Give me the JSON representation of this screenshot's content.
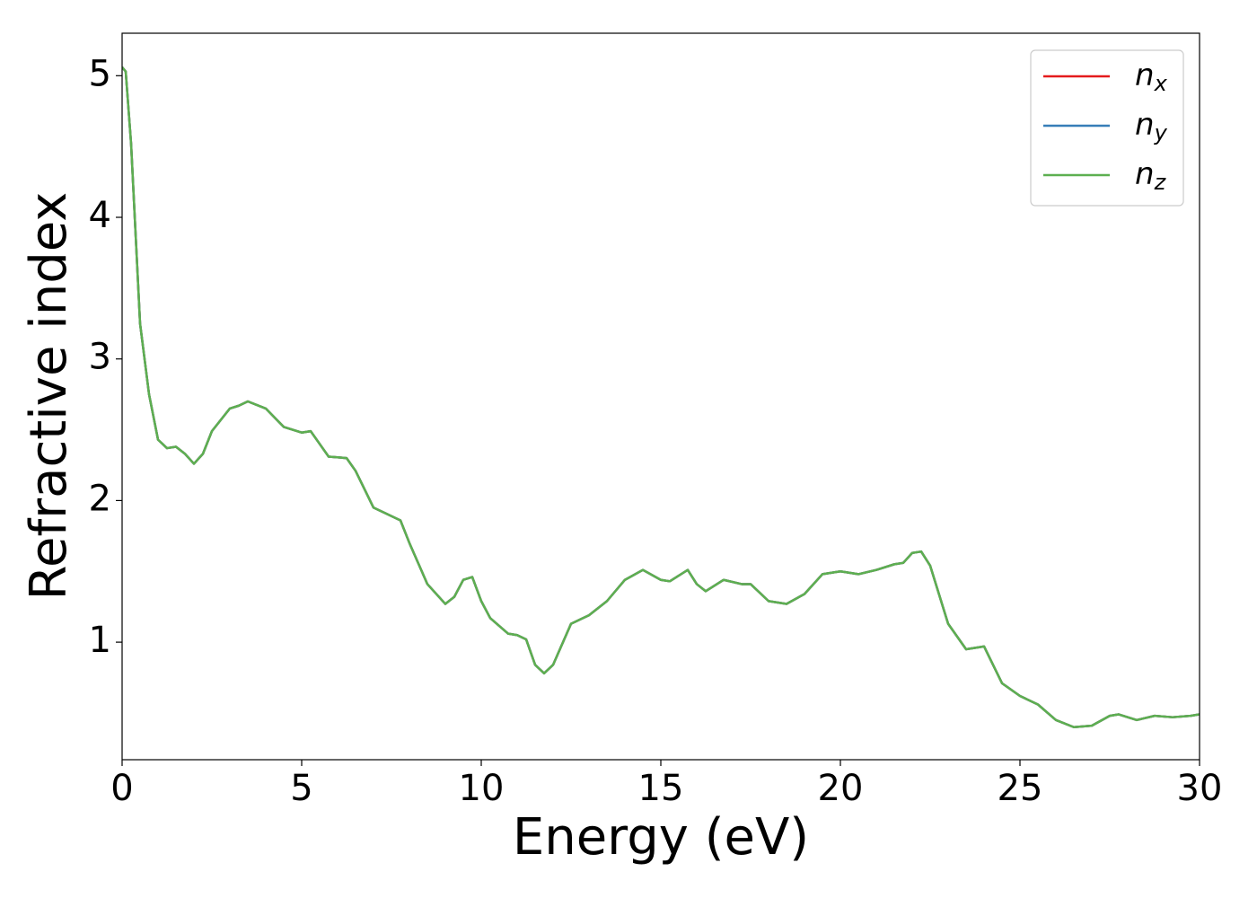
{
  "chart_data": {
    "type": "line",
    "x_label": "Energy (eV)",
    "y_label": "Refractive index",
    "xlim": [
      0,
      30
    ],
    "ylim": [
      0.17,
      5.3
    ],
    "xticks": [
      0,
      5,
      10,
      15,
      20,
      25,
      30
    ],
    "yticks": [
      1,
      2,
      3,
      4,
      5
    ],
    "grid": false,
    "legend": "upper right",
    "x": [
      0,
      0.1,
      0.25,
      0.5,
      0.75,
      1.0,
      1.25,
      1.5,
      1.75,
      2.0,
      2.25,
      2.5,
      3.0,
      3.25,
      3.5,
      4.0,
      4.5,
      5.0,
      5.25,
      5.5,
      5.75,
      6.25,
      6.5,
      7.0,
      7.5,
      7.75,
      8.0,
      8.5,
      9.0,
      9.25,
      9.5,
      9.75,
      10.0,
      10.25,
      10.75,
      11.0,
      11.25,
      11.5,
      11.75,
      12.0,
      12.5,
      13.0,
      13.5,
      14.0,
      14.5,
      15.0,
      15.25,
      15.75,
      16.0,
      16.25,
      16.75,
      17.25,
      17.5,
      18.0,
      18.5,
      19.0,
      19.5,
      20.0,
      20.5,
      21.0,
      21.5,
      21.75,
      22.0,
      22.25,
      22.5,
      23.0,
      23.5,
      24.0,
      24.5,
      25.0,
      25.5,
      26.0,
      26.5,
      27.0,
      27.5,
      27.75,
      28.25,
      28.75,
      29.25,
      29.75,
      30.0
    ],
    "series": [
      {
        "name": "nx",
        "color": "#e41a1c",
        "values": [
          5.06,
          5.03,
          4.52,
          3.25,
          2.75,
          2.43,
          2.37,
          2.38,
          2.33,
          2.26,
          2.33,
          2.49,
          2.65,
          2.67,
          2.7,
          2.65,
          2.52,
          2.48,
          2.49,
          2.4,
          2.31,
          2.3,
          2.21,
          1.95,
          1.89,
          1.86,
          1.7,
          1.41,
          1.27,
          1.32,
          1.44,
          1.46,
          1.29,
          1.17,
          1.06,
          1.05,
          1.02,
          0.84,
          0.78,
          0.84,
          1.13,
          1.19,
          1.29,
          1.44,
          1.51,
          1.44,
          1.43,
          1.51,
          1.41,
          1.36,
          1.44,
          1.41,
          1.41,
          1.29,
          1.27,
          1.34,
          1.48,
          1.5,
          1.48,
          1.51,
          1.55,
          1.56,
          1.63,
          1.64,
          1.54,
          1.13,
          0.95,
          0.97,
          0.71,
          0.62,
          0.56,
          0.45,
          0.4,
          0.41,
          0.48,
          0.49,
          0.45,
          0.48,
          0.47,
          0.48,
          0.49
        ]
      },
      {
        "name": "ny",
        "color": "#377eb8",
        "values": [
          5.06,
          5.03,
          4.52,
          3.25,
          2.75,
          2.43,
          2.37,
          2.38,
          2.33,
          2.26,
          2.33,
          2.49,
          2.65,
          2.67,
          2.7,
          2.65,
          2.52,
          2.48,
          2.49,
          2.4,
          2.31,
          2.3,
          2.21,
          1.95,
          1.89,
          1.86,
          1.7,
          1.41,
          1.27,
          1.32,
          1.44,
          1.46,
          1.29,
          1.17,
          1.06,
          1.05,
          1.02,
          0.84,
          0.78,
          0.84,
          1.13,
          1.19,
          1.29,
          1.44,
          1.51,
          1.44,
          1.43,
          1.51,
          1.41,
          1.36,
          1.44,
          1.41,
          1.41,
          1.29,
          1.27,
          1.34,
          1.48,
          1.5,
          1.48,
          1.51,
          1.55,
          1.56,
          1.63,
          1.64,
          1.54,
          1.13,
          0.95,
          0.97,
          0.71,
          0.62,
          0.56,
          0.45,
          0.4,
          0.41,
          0.48,
          0.49,
          0.45,
          0.48,
          0.47,
          0.48,
          0.49
        ]
      },
      {
        "name": "nz",
        "color": "#5daf50",
        "values": [
          5.06,
          5.03,
          4.52,
          3.25,
          2.75,
          2.43,
          2.37,
          2.38,
          2.33,
          2.26,
          2.33,
          2.49,
          2.65,
          2.67,
          2.7,
          2.65,
          2.52,
          2.48,
          2.49,
          2.4,
          2.31,
          2.3,
          2.21,
          1.95,
          1.89,
          1.86,
          1.7,
          1.41,
          1.27,
          1.32,
          1.44,
          1.46,
          1.29,
          1.17,
          1.06,
          1.05,
          1.02,
          0.84,
          0.78,
          0.84,
          1.13,
          1.19,
          1.29,
          1.44,
          1.51,
          1.44,
          1.43,
          1.51,
          1.41,
          1.36,
          1.44,
          1.41,
          1.41,
          1.29,
          1.27,
          1.34,
          1.48,
          1.5,
          1.48,
          1.51,
          1.55,
          1.56,
          1.63,
          1.64,
          1.54,
          1.13,
          0.95,
          0.97,
          0.71,
          0.62,
          0.56,
          0.45,
          0.4,
          0.41,
          0.48,
          0.49,
          0.45,
          0.48,
          0.47,
          0.48,
          0.49
        ]
      }
    ]
  }
}
